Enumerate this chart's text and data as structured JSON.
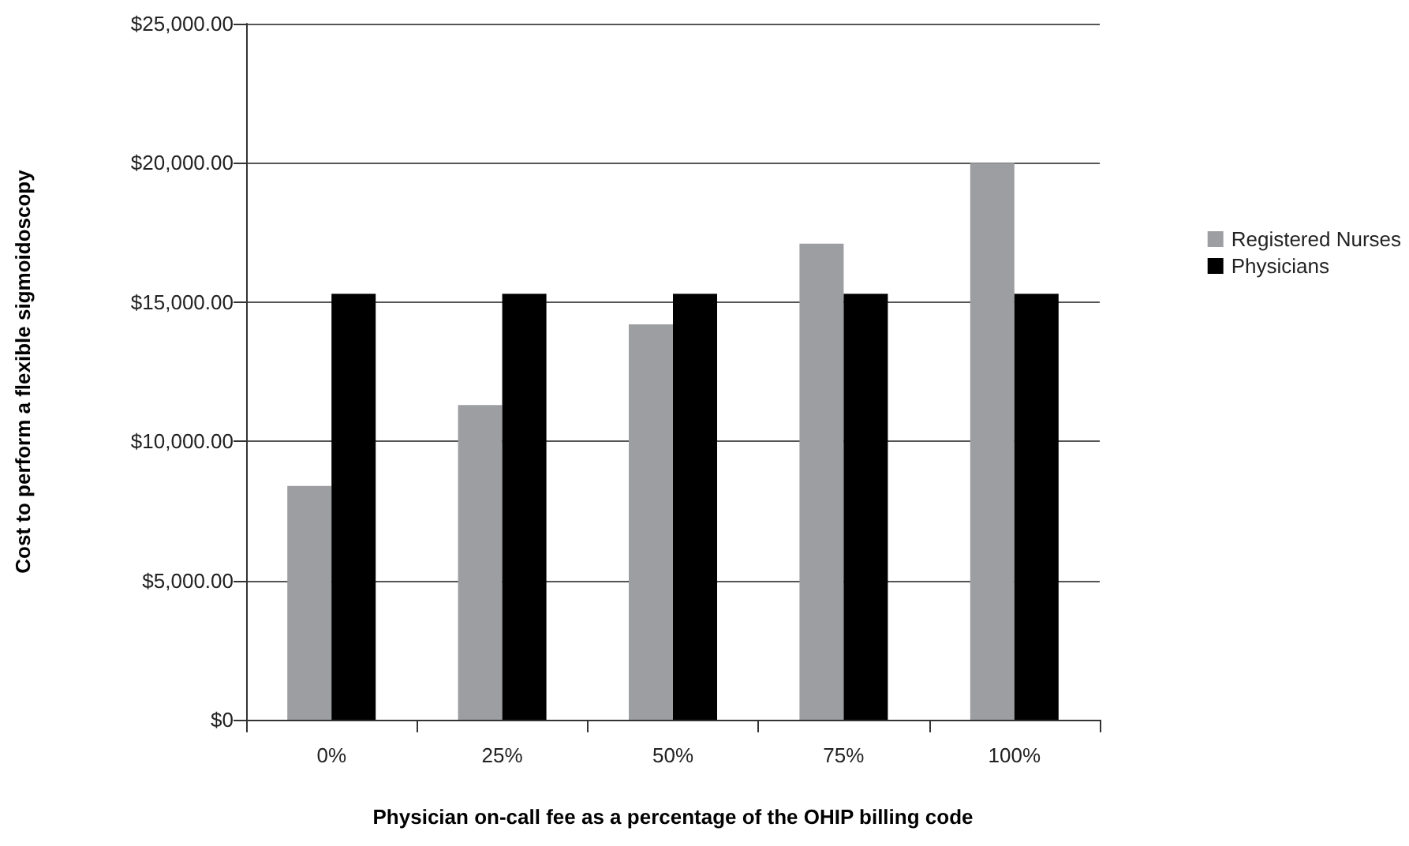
{
  "chart_data": {
    "type": "bar",
    "xlabel": "Physician on-call fee as a percentage of the OHIP billing code",
    "ylabel": "Cost to perform a flexible sigmoidoscopy",
    "categories": [
      "0%",
      "25%",
      "50%",
      "75%",
      "100%"
    ],
    "series": [
      {
        "name": "Registered Nurses",
        "color": "#9d9ea2",
        "values": [
          8400,
          11300,
          14200,
          17100,
          20000
        ]
      },
      {
        "name": "Physicians",
        "color": "#000000",
        "values": [
          15300,
          15300,
          15300,
          15300,
          15300
        ]
      }
    ],
    "ylim": [
      0,
      25000
    ],
    "yticks": [
      {
        "value": 0,
        "label": "$0"
      },
      {
        "value": 5000,
        "label": "$5,000.00"
      },
      {
        "value": 10000,
        "label": "$10,000.00"
      },
      {
        "value": 15000,
        "label": "$15,000.00"
      },
      {
        "value": 20000,
        "label": "$20,000.00"
      },
      {
        "value": 25000,
        "label": "$25,000.00"
      }
    ],
    "grid": "y",
    "legend": "right"
  }
}
